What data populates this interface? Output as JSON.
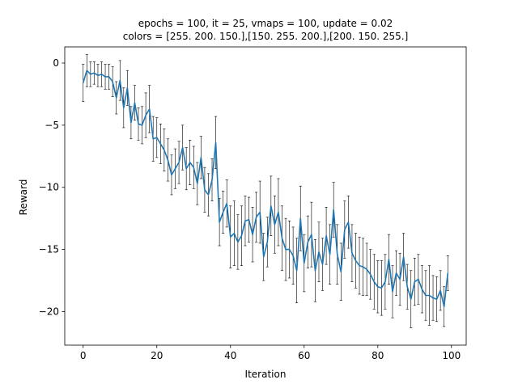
{
  "chart_data": {
    "type": "line",
    "title": "epochs = 100, it = 25, vmaps = 100, update = 0.02",
    "subtitle": "colors = [255. 200. 150.],[150. 255. 200.],[200. 150. 255.]",
    "xlabel": "Iteration",
    "ylabel": "Reward",
    "xlim": [
      -5,
      104
    ],
    "ylim": [
      -22.7,
      1.3
    ],
    "xticks": [
      0,
      20,
      40,
      60,
      80,
      100
    ],
    "yticks": [
      0,
      -5,
      -10,
      -15,
      -20
    ],
    "x_tick_labels": [
      "0",
      "20",
      "40",
      "60",
      "80",
      "100"
    ],
    "y_tick_labels": [
      "0",
      "−5",
      "−10",
      "−15",
      "−20"
    ],
    "grid": false,
    "line_color": "#1f77b4",
    "errorbar_color": "#000000",
    "series": [
      {
        "x": [
          0,
          1,
          2,
          3,
          4,
          5,
          6,
          7,
          8,
          9,
          10,
          11,
          12,
          13,
          14,
          15,
          16,
          17,
          18,
          19,
          20,
          21,
          22,
          23,
          24,
          25,
          26,
          27,
          28,
          29,
          30,
          31,
          32,
          33,
          34,
          35,
          36,
          37,
          38,
          39,
          40,
          41,
          42,
          43,
          44,
          45,
          46,
          47,
          48,
          49,
          50,
          51,
          52,
          53,
          54,
          55,
          56,
          57,
          58,
          59,
          60,
          61,
          62,
          63,
          64,
          65,
          66,
          67,
          68,
          69,
          70,
          71,
          72,
          73,
          74,
          75,
          76,
          77,
          78,
          79,
          80,
          81,
          82,
          83,
          84,
          85,
          86,
          87,
          88,
          89,
          90,
          91,
          92,
          93,
          94,
          95,
          96,
          97,
          98,
          99
        ],
        "y": [
          -1.6,
          -0.6,
          -0.9,
          -0.8,
          -1.0,
          -0.9,
          -1.1,
          -1.1,
          -1.5,
          -2.8,
          -1.4,
          -3.6,
          -2.0,
          -4.8,
          -3.2,
          -4.9,
          -5.0,
          -4.2,
          -3.7,
          -6.1,
          -6.0,
          -6.5,
          -7.0,
          -7.8,
          -9.0,
          -8.5,
          -8.0,
          -6.8,
          -8.5,
          -8.0,
          -8.4,
          -9.7,
          -7.6,
          -10.2,
          -10.6,
          -9.4,
          -6.4,
          -12.8,
          -12.0,
          -11.3,
          -14.0,
          -13.7,
          -14.4,
          -13.9,
          -12.7,
          -12.6,
          -13.8,
          -12.4,
          -12.0,
          -15.6,
          -14.4,
          -11.5,
          -13.0,
          -12.0,
          -14.1,
          -15.0,
          -15.0,
          -15.5,
          -16.7,
          -12.5,
          -16.1,
          -14.4,
          -13.8,
          -16.7,
          -15.2,
          -16.2,
          -13.9,
          -15.4,
          -11.8,
          -15.4,
          -16.8,
          -13.4,
          -12.8,
          -15.3,
          -15.9,
          -16.3,
          -16.4,
          -16.6,
          -17.0,
          -17.6,
          -18.0,
          -18.1,
          -17.6,
          -15.8,
          -18.4,
          -16.9,
          -17.4,
          -15.6,
          -18.0,
          -19.0,
          -17.6,
          -17.4,
          -18.2,
          -18.7,
          -18.7,
          -18.9,
          -19.0,
          -18.3,
          -19.6,
          -16.9
        ],
        "yerr": [
          1.5,
          1.3,
          1.0,
          0.9,
          0.9,
          1.0,
          1.0,
          1.0,
          1.2,
          1.3,
          1.6,
          1.6,
          1.4,
          1.3,
          1.4,
          1.3,
          1.5,
          1.8,
          1.9,
          1.8,
          1.6,
          1.6,
          1.7,
          1.7,
          1.6,
          1.6,
          1.7,
          1.8,
          1.7,
          1.8,
          1.7,
          1.7,
          1.7,
          1.8,
          1.7,
          1.7,
          2.1,
          1.9,
          1.7,
          1.9,
          2.5,
          2.6,
          2.2,
          2.4,
          2.0,
          1.8,
          2.2,
          2.0,
          2.5,
          1.9,
          2.0,
          2.4,
          2.3,
          2.7,
          2.6,
          2.5,
          2.3,
          2.3,
          2.6,
          2.6,
          2.3,
          2.1,
          2.6,
          2.5,
          2.4,
          2.1,
          2.3,
          2.4,
          2.2,
          2.4,
          2.3,
          2.3,
          2.1,
          2.3,
          2.2,
          2.3,
          2.3,
          2.1,
          2.0,
          2.2,
          2.1,
          2.2,
          2.2,
          2.0,
          2.1,
          1.8,
          2.1,
          1.9,
          1.8,
          2.3,
          1.9,
          2.0,
          1.9,
          2.0,
          2.4,
          1.8,
          1.8,
          1.6,
          1.6,
          1.4
        ]
      }
    ]
  }
}
